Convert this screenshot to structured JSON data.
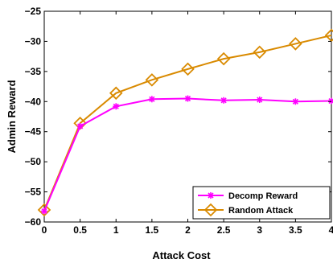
{
  "chart_data": {
    "type": "line",
    "title": "",
    "xlabel": "Attack Cost",
    "ylabel": "Admin Reward",
    "xlim": [
      0,
      4
    ],
    "ylim": [
      -60,
      -25
    ],
    "xticks": [
      "0",
      "0.5",
      "1",
      "1.5",
      "2",
      "2.5",
      "3",
      "3.5",
      "4"
    ],
    "yticks": [
      "−25",
      "−30",
      "−35",
      "−40",
      "−45",
      "−50",
      "−55",
      "−60"
    ],
    "x": [
      0,
      0.5,
      1,
      1.5,
      2,
      2.5,
      3,
      3.5,
      4
    ],
    "grid": false,
    "legend_position": "bottom-right",
    "series": [
      {
        "name": "Decomp Reward",
        "color": "#ff00ff",
        "marker": "star",
        "values": [
          -58.2,
          -44.1,
          -40.8,
          -39.6,
          -39.5,
          -39.8,
          -39.7,
          -40.0,
          -39.9
        ]
      },
      {
        "name": "Random Attack",
        "color": "#d98a00",
        "marker": "diamond",
        "values": [
          -58.0,
          -43.6,
          -38.6,
          -36.4,
          -34.6,
          -32.9,
          -31.8,
          -30.4,
          -29.0
        ]
      }
    ]
  }
}
